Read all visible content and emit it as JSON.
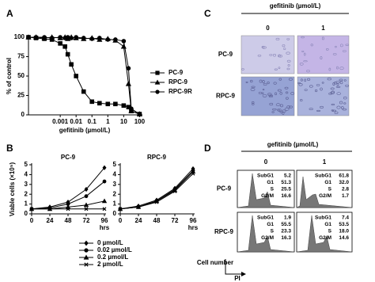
{
  "chart_data": [
    {
      "type": "line",
      "letter": "A",
      "ylabel": "% of control",
      "xlabel": "gefitinib (µmol/L)",
      "xscale": "log",
      "xlim": [
        1e-05,
        120
      ],
      "xticks": [
        0.001,
        0.01,
        0.1,
        1,
        10,
        100
      ],
      "ylim": [
        0,
        100
      ],
      "yticks": [
        0,
        25,
        50,
        75,
        100
      ],
      "x": [
        1e-05,
        3e-05,
        0.0001,
        0.0003,
        0.001,
        0.002,
        0.003,
        0.005,
        0.01,
        0.03,
        0.1,
        0.3,
        1,
        3,
        10,
        20,
        30,
        100
      ],
      "series": [
        {
          "name": "PC-9",
          "marker": "square",
          "color": "#000000",
          "values": [
            100,
            99,
            98,
            97,
            92,
            88,
            78,
            65,
            50,
            30,
            17,
            15,
            14,
            14,
            12,
            10,
            5,
            1
          ]
        },
        {
          "name": "RPC-9",
          "marker": "triangle",
          "color": "#000000",
          "values": [
            100,
            100,
            99,
            100,
            99,
            100,
            98,
            100,
            99,
            98,
            99,
            97,
            98,
            96,
            88,
            40,
            5,
            1
          ]
        },
        {
          "name": "RPC-9R",
          "marker": "circle",
          "color": "#000000",
          "values": [
            100,
            100,
            100,
            99,
            100,
            99,
            100,
            99,
            100,
            99,
            98,
            99,
            97,
            97,
            95,
            60,
            8,
            1
          ]
        }
      ]
    },
    {
      "type": "line",
      "letter": "B",
      "title": "PC-9",
      "ylabel": "Viable cells (×10⁵)",
      "xlabel": "hrs",
      "x": [
        0,
        24,
        48,
        72,
        96
      ],
      "xlim": [
        0,
        96
      ],
      "xticks": [
        0,
        24,
        48,
        72,
        96
      ],
      "ylim": [
        0,
        5
      ],
      "yticks": [
        0,
        1,
        2,
        3,
        4,
        5
      ],
      "series": [
        {
          "name": "0 µmol/L",
          "marker": "diamond",
          "color": "#000000",
          "values": [
            0.5,
            0.7,
            1.2,
            2.5,
            4.7
          ]
        },
        {
          "name": "0.02 µmol/L",
          "marker": "circle",
          "color": "#000000",
          "values": [
            0.5,
            0.6,
            1.0,
            1.8,
            3.3
          ]
        },
        {
          "name": "0.2 µmol/L",
          "marker": "triangle",
          "color": "#000000",
          "values": [
            0.5,
            0.5,
            0.7,
            0.9,
            1.3
          ]
        },
        {
          "name": "2 µmol/L",
          "marker": "cross",
          "color": "#000000",
          "values": [
            0.5,
            0.5,
            0.5,
            0.5,
            0.5
          ]
        }
      ]
    },
    {
      "type": "line",
      "title": "RPC-9",
      "xlabel": "hrs",
      "x": [
        0,
        24,
        48,
        72,
        96
      ],
      "xlim": [
        0,
        96
      ],
      "xticks": [
        0,
        24,
        48,
        72,
        96
      ],
      "ylim": [
        0,
        5
      ],
      "yticks": [
        0,
        1,
        2,
        3,
        4,
        5
      ],
      "series": [
        {
          "marker": "diamond",
          "color": "#000000",
          "values": [
            0.5,
            0.8,
            1.4,
            2.6,
            4.6
          ]
        },
        {
          "marker": "circle",
          "color": "#000000",
          "values": [
            0.5,
            0.7,
            1.3,
            2.5,
            4.4
          ]
        },
        {
          "marker": "triangle",
          "color": "#000000",
          "values": [
            0.5,
            0.7,
            1.3,
            2.4,
            4.3
          ]
        },
        {
          "marker": "cross",
          "color": "#000000",
          "values": [
            0.5,
            0.7,
            1.2,
            2.3,
            4.1
          ]
        }
      ]
    }
  ],
  "panel_c": {
    "letter": "C",
    "header": "gefitinib (µmol/L)",
    "columns": [
      "0",
      "1"
    ],
    "rows": [
      "PC-9",
      "RPC-9"
    ]
  },
  "panel_d": {
    "letter": "D",
    "header": "gefitinib (µmol/L)",
    "columns": [
      "0",
      "1"
    ],
    "phases": [
      "SubG1",
      "G1",
      "S",
      "G2/M"
    ],
    "rows": [
      {
        "label": "PC-9",
        "cells": [
          [
            "5.2",
            "51.3",
            "25.5",
            "16.6"
          ],
          [
            "61.8",
            "32.0",
            "2.8",
            "1.7"
          ]
        ]
      },
      {
        "label": "RPC-9",
        "cells": [
          [
            "1.9",
            "55.5",
            "23.3",
            "16.3"
          ],
          [
            "7.4",
            "53.5",
            "18.0",
            "14.6"
          ]
        ]
      }
    ],
    "ylabel": "Cell number",
    "xlabel": "PI"
  }
}
